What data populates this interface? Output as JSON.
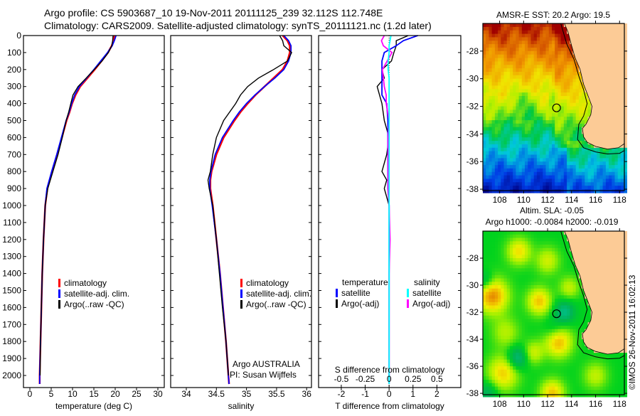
{
  "header": {
    "line1": "Argo profile: CS 5903687_10 19-Nov-2011 20111125_239 32.112S 112.748E",
    "line2": "Climatology: CARS2009. Satellite-adjusted climatology: synTS_20111121.nc (1.2d later)"
  },
  "colors": {
    "climatology": "#ff0000",
    "satellite": "#0000ff",
    "argo": "#000000",
    "sal_satellite": "#00ffff",
    "sal_argo": "#ff00ff",
    "land": "#fccb96"
  },
  "chart_data": [
    {
      "type": "line",
      "id": "temperature",
      "xlabel": "temperature (deg C)",
      "ylabel": "",
      "xlim": [
        -1.5,
        31.5
      ],
      "ylim": [
        2050,
        0
      ],
      "xticks": [
        "0",
        "5",
        "10",
        "15",
        "20",
        "25",
        "30"
      ],
      "yticks": [
        "0",
        "100",
        "200",
        "300",
        "400",
        "500",
        "600",
        "700",
        "800",
        "900",
        "1000",
        "1100",
        "1200",
        "1300",
        "1400",
        "1500",
        "1600",
        "1700",
        "1800",
        "1900",
        "2000"
      ],
      "depth": [
        0,
        30,
        60,
        100,
        150,
        200,
        250,
        300,
        350,
        400,
        450,
        500,
        600,
        700,
        800,
        900,
        1000,
        1200,
        1400,
        1600,
        1800,
        2000,
        2050
      ],
      "series": [
        {
          "name": "climatology",
          "values": [
            19.8,
            19.6,
            19.2,
            18.3,
            16.8,
            15.2,
            13.5,
            11.8,
            10.7,
            9.9,
            9.3,
            8.6,
            7.5,
            6.4,
            5.2,
            4.1,
            3.6,
            3.2,
            2.9,
            2.7,
            2.5,
            2.3,
            2.3
          ]
        },
        {
          "name": "satellite-adj. clim.",
          "values": [
            20.2,
            19.8,
            19.3,
            18.2,
            16.6,
            15.0,
            13.3,
            11.6,
            10.5,
            9.8,
            9.2,
            8.5,
            7.4,
            6.3,
            5.1,
            4.0,
            3.6,
            3.2,
            2.9,
            2.7,
            2.5,
            2.3,
            2.3
          ]
        },
        {
          "name": "Argo(..raw -QC)",
          "values": [
            19.5,
            19.4,
            19.2,
            18.4,
            16.9,
            15.1,
            13.2,
            11.3,
            10.1,
            9.6,
            9.1,
            8.5,
            7.6,
            6.6,
            5.4,
            4.2,
            3.6,
            3.2,
            2.9,
            2.7,
            2.5,
            2.4,
            null
          ]
        }
      ],
      "legend": [
        "climatology",
        "satellite-adj. clim.",
        "Argo(..raw -QC)"
      ],
      "legend_position": "center-left"
    },
    {
      "type": "line",
      "id": "salinity",
      "xlabel": "salinity",
      "xlim": [
        33.74,
        36.08
      ],
      "ylim": [
        2050,
        0
      ],
      "xticks": [
        "34",
        "34.5",
        "35",
        "35.5",
        "36"
      ],
      "depth": [
        0,
        30,
        60,
        100,
        150,
        200,
        250,
        300,
        350,
        400,
        450,
        500,
        600,
        700,
        800,
        850,
        900,
        1000,
        1200,
        1400,
        1600,
        1800,
        2000,
        2050
      ],
      "series": [
        {
          "name": "climatology",
          "values": [
            35.6,
            35.68,
            35.72,
            35.72,
            35.68,
            35.6,
            35.45,
            35.3,
            35.15,
            35.02,
            34.9,
            34.8,
            34.62,
            34.5,
            34.42,
            34.4,
            34.4,
            34.44,
            34.5,
            34.56,
            34.61,
            34.66,
            34.7,
            34.71
          ]
        },
        {
          "name": "satellite-adj. clim.",
          "values": [
            35.62,
            35.7,
            35.74,
            35.74,
            35.7,
            35.62,
            35.47,
            35.3,
            35.14,
            35.0,
            34.88,
            34.78,
            34.6,
            34.48,
            34.41,
            34.39,
            34.39,
            34.43,
            34.5,
            34.56,
            34.61,
            34.66,
            34.7,
            34.71
          ]
        },
        {
          "name": "Argo(..raw -QC)",
          "values": [
            35.55,
            35.6,
            35.62,
            35.75,
            35.68,
            35.45,
            35.2,
            35.02,
            34.9,
            34.82,
            34.72,
            34.62,
            34.5,
            34.44,
            34.4,
            34.36,
            34.38,
            34.44,
            34.5,
            34.55,
            34.6,
            34.66,
            34.7,
            null
          ]
        }
      ],
      "legend": [
        "climatology",
        "satellite-adj. clim.",
        "Argo(..raw -QC)"
      ],
      "annotation": [
        "Argo AUSTRALIA",
        "PI: Susan Wijffels"
      ]
    },
    {
      "type": "line",
      "id": "difference",
      "xlabel": "T difference from climatology",
      "xlabel_top": "S difference from climatology",
      "xlim": [
        -2.95,
        3.0
      ],
      "ylim": [
        2050,
        0
      ],
      "xticks": [
        "-2",
        "-1",
        "0",
        "1",
        "2"
      ],
      "xticks_top": [
        "-0.5",
        "-0.25",
        "0",
        "0.25",
        "0.5"
      ],
      "depth": [
        0,
        30,
        60,
        100,
        150,
        200,
        250,
        300,
        350,
        400,
        500,
        600,
        700,
        800,
        850,
        900,
        1000,
        1200,
        1400,
        1600,
        1800,
        2000,
        2050
      ],
      "series": [
        {
          "name": "temperature satellite",
          "axis": "T",
          "values": [
            1.2,
            0.6,
            0.3,
            -0.2,
            -0.3,
            -0.3,
            -0.3,
            -0.3,
            -0.3,
            -0.1,
            -0.05,
            -0.05,
            -0.05,
            -0.05,
            -0.05,
            -0.05,
            0.0,
            0.0,
            0.0,
            0.0,
            0.0,
            0.0,
            0.0
          ]
        },
        {
          "name": "temperature Argo(-adj)",
          "axis": "T",
          "values": [
            0.8,
            0.3,
            0.3,
            0.2,
            0.1,
            -0.3,
            -0.2,
            -0.5,
            -0.4,
            -0.3,
            -0.2,
            0.0,
            -0.1,
            -0.3,
            -0.1,
            -0.2,
            0.0,
            0.0,
            0.0,
            0.0,
            0.0,
            0.0,
            null
          ]
        },
        {
          "name": "salinity satellite",
          "axis": "S",
          "values": [
            0.02,
            0.01,
            0.0,
            0.0,
            -0.01,
            -0.01,
            0.0,
            0.0,
            0.0,
            0.0,
            0.0,
            0.0,
            0.0,
            0.0,
            0.0,
            0.0,
            0.0,
            0.0,
            0.0,
            0.0,
            0.0,
            0.0,
            0.0
          ]
        },
        {
          "name": "salinity Argo(-adj)",
          "axis": "S",
          "values": [
            -0.05,
            -0.08,
            -0.06,
            0.03,
            -0.02,
            -0.07,
            -0.06,
            -0.05,
            -0.03,
            -0.03,
            0.0,
            -0.01,
            -0.01,
            -0.01,
            -0.01,
            -0.01,
            0.0,
            0.01,
            0.0,
            0.0,
            0.0,
            0.0,
            null
          ]
        }
      ],
      "legend_temperature_title": "temperature",
      "legend_salinity_title": "salinity",
      "legend_temperature": [
        "satellite",
        "Argo(-adj)"
      ],
      "legend_salinity": [
        "satellite",
        "Argo(-adj)"
      ]
    },
    {
      "type": "heatmap",
      "id": "sst-map",
      "title": "AMSR-E SST: 20.2 Argo: 19.5",
      "xlim": [
        106.6,
        118.4
      ],
      "ylim": [
        -38.1,
        -26.0
      ],
      "xticks": [
        "108",
        "110",
        "112",
        "114",
        "116",
        "118"
      ],
      "yticks": [
        "-28",
        "-30",
        "-32",
        "-34",
        "-36",
        "-38"
      ],
      "marker": {
        "lon": 112.748,
        "lat": -32.112
      }
    },
    {
      "type": "heatmap",
      "id": "sla-map",
      "title": "Altim. SLA: -0.05",
      "subtitle": "Argo h1000: -0.0084 h2000: -0.019",
      "xlim": [
        106.6,
        118.4
      ],
      "ylim": [
        -38.1,
        -26.0
      ],
      "xticks": [
        "108",
        "110",
        "112",
        "114",
        "116",
        "118"
      ],
      "yticks": [
        "-28",
        "-30",
        "-32",
        "-34",
        "-36",
        "-38"
      ],
      "marker": {
        "lon": 112.748,
        "lat": -32.112
      }
    }
  ],
  "footer": {
    "credit": "©IMOS 26-Nov-2011 16:02:13"
  }
}
